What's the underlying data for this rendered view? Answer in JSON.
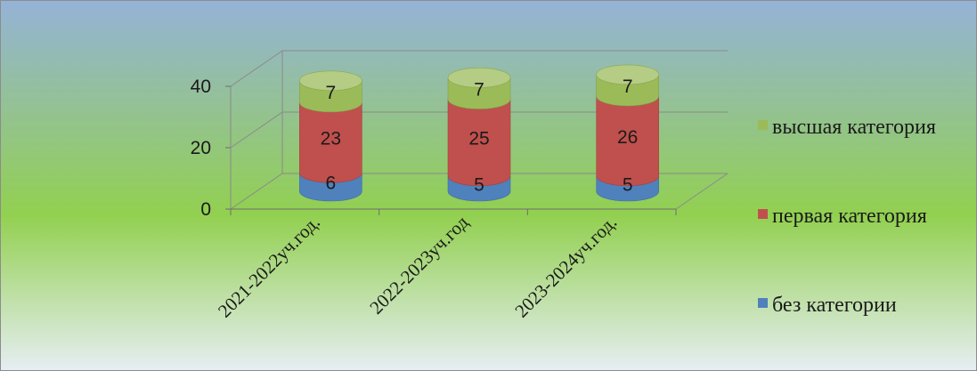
{
  "chart_data": {
    "type": "bar",
    "style": "stacked-3d-cylinder",
    "categories": [
      "2021-2022уч.год.",
      "2022-2023уч.год",
      "2023-2024уч.год."
    ],
    "series": [
      {
        "name": "без категории",
        "values": [
          6,
          5,
          5
        ],
        "color": "#4f81bd"
      },
      {
        "name": "первая категория",
        "values": [
          23,
          25,
          26
        ],
        "color": "#c0504d"
      },
      {
        "name": "высшая категория",
        "values": [
          7,
          7,
          7
        ],
        "color": "#9bbb59"
      }
    ],
    "yticks": [
      "0",
      "20",
      "40"
    ],
    "ylim": [
      0,
      40
    ],
    "grid": true,
    "legend_position": "right",
    "legend_order": [
      "высшая категория",
      "первая категория",
      "без категории"
    ],
    "background": [
      "#95b3d7",
      "#92d050",
      "#e6eef2"
    ]
  }
}
